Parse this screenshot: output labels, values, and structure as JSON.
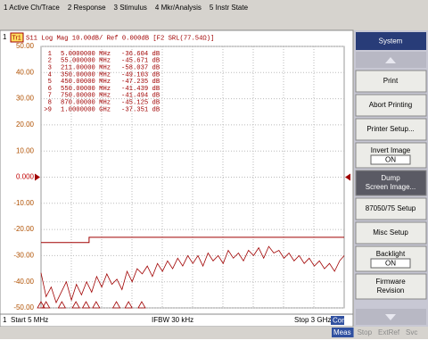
{
  "menu": [
    "1 Active Ch/Trace",
    "2 Response",
    "3 Stimulus",
    "4 Mkr/Analysis",
    "5 Instr State"
  ],
  "channel": "1",
  "trace_header": {
    "trace": "Tr1",
    "text": "S11 Log Mag 10.00dB/ Ref 0.000dB [F2 SRL(77.54Ω)]"
  },
  "markers": [
    {
      "id": "1",
      "x": {
        "value": 5,
        "label": "5.0000000 MHz"
      },
      "response": "-36.604 dB"
    },
    {
      "id": "2",
      "x": {
        "value": 55,
        "label": "55.000000 MHz"
      },
      "response": "-45.671 dB"
    },
    {
      "id": "3",
      "x": {
        "value": 211,
        "label": "211.00000 MHz"
      },
      "response": "-58.037 dB"
    },
    {
      "id": "4",
      "x": {
        "value": 350,
        "label": "350.00000 MHz"
      },
      "response": "-49.103 dB"
    },
    {
      "id": "5",
      "x": {
        "value": 450,
        "label": "450.00000 MHz"
      },
      "response": "-47.235 dB"
    },
    {
      "id": "6",
      "x": {
        "value": 550,
        "label": "550.00000 MHz"
      },
      "response": "-41.439 dB"
    },
    {
      "id": "7",
      "x": {
        "value": 750,
        "label": "750.00000 MHz"
      },
      "response": "-41.494 dB"
    },
    {
      "id": "8",
      "x": {
        "value": 870,
        "label": "870.00000 MHz"
      },
      "response": "-45.125 dB"
    },
    {
      "id": ">9",
      "x": {
        "value": 1000,
        "label": "1.0000000 GHz"
      },
      "response": "-37.351 dB"
    }
  ],
  "chart_data": {
    "type": "line",
    "xlim": [
      5,
      3000
    ],
    "ylim": [
      -50,
      50
    ],
    "yticks": [
      {
        "value": 50,
        "label": "50.00"
      },
      {
        "value": 40,
        "label": "40.00"
      },
      {
        "value": 30,
        "label": "30.00"
      },
      {
        "value": 20,
        "label": "20.00"
      },
      {
        "value": 10,
        "label": "10.00"
      },
      {
        "value": 0,
        "label": "0.000"
      },
      {
        "value": -10,
        "label": "-10.00"
      },
      {
        "value": -20,
        "label": "-20.00"
      },
      {
        "value": -30,
        "label": "-30.00"
      },
      {
        "value": -40,
        "label": "-40.00"
      },
      {
        "value": -50,
        "label": "-50.00"
      }
    ],
    "grid": true,
    "series": [
      {
        "name": "S11",
        "color": "#a00000",
        "x": [
          5,
          55,
          105,
          155,
          205,
          255,
          305,
          355,
          405,
          455,
          505,
          555,
          605,
          655,
          705,
          755,
          805,
          855,
          905,
          955,
          1005,
          1055,
          1105,
          1155,
          1205,
          1255,
          1305,
          1355,
          1405,
          1455,
          1505,
          1555,
          1605,
          1655,
          1705,
          1755,
          1805,
          1855,
          1905,
          1955,
          2005,
          2055,
          2105,
          2155,
          2205,
          2255,
          2305,
          2355,
          2405,
          2455,
          2505,
          2555,
          2605,
          2655,
          2705,
          2755,
          2805,
          2855,
          2905,
          2955,
          3000
        ],
        "values": [
          -36.6,
          -45.7,
          -42,
          -48,
          -44,
          -40,
          -47,
          -41,
          -45,
          -40,
          -44,
          -38,
          -42,
          -37,
          -41,
          -39,
          -43,
          -36,
          -40,
          -35,
          -37,
          -34,
          -38,
          -33,
          -36,
          -32,
          -35,
          -31,
          -34,
          -30,
          -33,
          -30,
          -34,
          -29,
          -32,
          -30,
          -33,
          -28,
          -31,
          -29,
          -32,
          -28,
          -30,
          -27,
          -31,
          -26.5,
          -29,
          -28,
          -31,
          -29,
          -32,
          -30,
          -33,
          -31,
          -34,
          -32,
          -35,
          -33,
          -36,
          -32,
          -30
        ]
      },
      {
        "name": "Limit",
        "color": "#a00000",
        "x": [
          5,
          480,
          480,
          3000
        ],
        "values": [
          -25,
          -25,
          -23,
          -23
        ]
      }
    ]
  },
  "footer": {
    "channel": "1",
    "start": "Start 5 MHz",
    "ifbw": "IFBW 30 kHz",
    "stop": "Stop 3 GHz",
    "cor": "Cor"
  },
  "softkeys": {
    "title": "System",
    "keys": [
      {
        "lines": [
          "Print"
        ]
      },
      {
        "lines": [
          "Abort Printing"
        ]
      },
      {
        "lines": [
          "Printer Setup..."
        ]
      },
      {
        "lines": [
          "Invert Image"
        ],
        "state": "ON"
      },
      {
        "lines": [
          "Dump",
          "Screen Image..."
        ],
        "active": true
      },
      {
        "lines": [
          "87050/75 Setup"
        ]
      },
      {
        "lines": [
          "Misc Setup"
        ]
      },
      {
        "lines": [
          "Backlight"
        ],
        "state": "ON"
      },
      {
        "lines": [
          "Firmware",
          "Revision"
        ]
      }
    ]
  },
  "status": [
    "Meas",
    "Stop",
    "ExtRef",
    "Svc"
  ]
}
